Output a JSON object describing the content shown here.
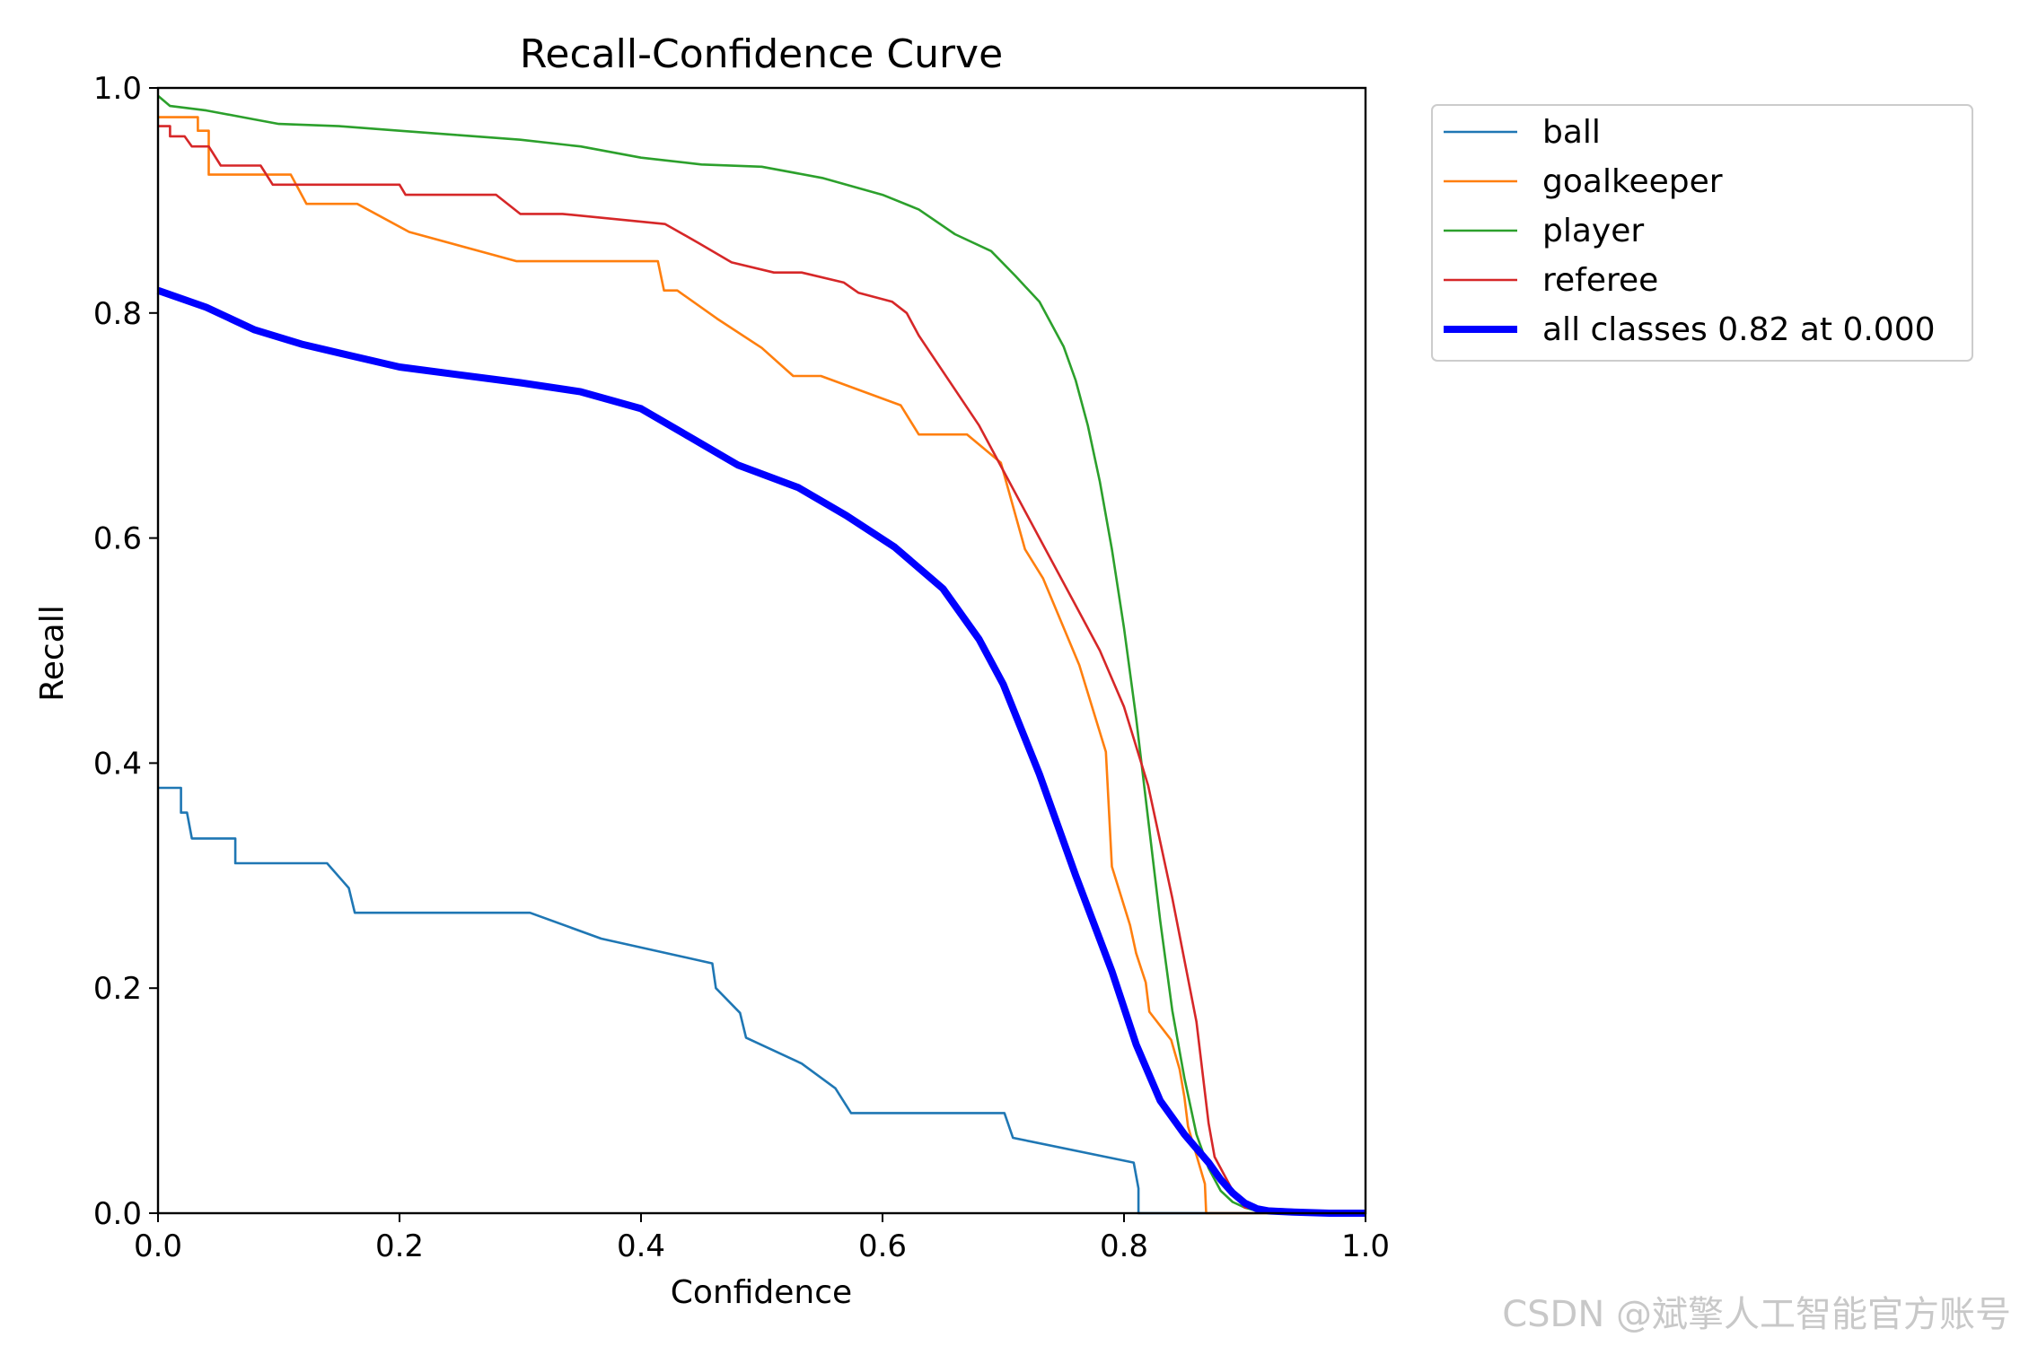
{
  "chart_data": {
    "type": "line",
    "title": "Recall-Confidence Curve",
    "xlabel": "Confidence",
    "ylabel": "Recall",
    "xlim": [
      0,
      1
    ],
    "ylim": [
      0,
      1
    ],
    "xticks": [
      "0.0",
      "0.2",
      "0.4",
      "0.6",
      "0.8",
      "1.0"
    ],
    "yticks": [
      "0.0",
      "0.2",
      "0.4",
      "0.6",
      "0.8",
      "1.0"
    ],
    "grid": false,
    "legend_position": "outside-top-right",
    "series": [
      {
        "name": "ball",
        "color": "#1f77b4",
        "width": "thin",
        "x": [
          0.0,
          0.019,
          0.019,
          0.024,
          0.028,
          0.033,
          0.064,
          0.064,
          0.14,
          0.158,
          0.163,
          0.308,
          0.367,
          0.459,
          0.462,
          0.482,
          0.487,
          0.533,
          0.561,
          0.574,
          0.701,
          0.708,
          0.808,
          0.812,
          0.812,
          1.0
        ],
        "y": [
          0.378,
          0.378,
          0.356,
          0.356,
          0.333,
          0.333,
          0.333,
          0.311,
          0.311,
          0.289,
          0.267,
          0.267,
          0.244,
          0.222,
          0.2,
          0.178,
          0.156,
          0.133,
          0.111,
          0.089,
          0.089,
          0.067,
          0.045,
          0.022,
          0.0,
          0.0
        ]
      },
      {
        "name": "goalkeeper",
        "color": "#ff7f0e",
        "width": "thin",
        "x": [
          0.0,
          0.033,
          0.033,
          0.042,
          0.042,
          0.11,
          0.123,
          0.165,
          0.208,
          0.297,
          0.414,
          0.419,
          0.43,
          0.463,
          0.5,
          0.526,
          0.549,
          0.615,
          0.63,
          0.67,
          0.698,
          0.718,
          0.733,
          0.763,
          0.785,
          0.79,
          0.805,
          0.81,
          0.818,
          0.821,
          0.839,
          0.846,
          0.85,
          0.853,
          0.867,
          0.868,
          1.0
        ],
        "y": [
          0.974,
          0.974,
          0.962,
          0.962,
          0.923,
          0.923,
          0.897,
          0.897,
          0.872,
          0.846,
          0.846,
          0.82,
          0.82,
          0.795,
          0.769,
          0.744,
          0.744,
          0.718,
          0.692,
          0.692,
          0.667,
          0.59,
          0.564,
          0.487,
          0.41,
          0.308,
          0.256,
          0.231,
          0.205,
          0.179,
          0.154,
          0.128,
          0.103,
          0.077,
          0.026,
          0.0,
          0.0
        ]
      },
      {
        "name": "player",
        "color": "#2ca02c",
        "width": "thin",
        "x": [
          0.0,
          0.01,
          0.04,
          0.08,
          0.1,
          0.15,
          0.2,
          0.25,
          0.3,
          0.35,
          0.4,
          0.45,
          0.5,
          0.55,
          0.6,
          0.63,
          0.66,
          0.69,
          0.71,
          0.73,
          0.75,
          0.76,
          0.77,
          0.78,
          0.79,
          0.8,
          0.81,
          0.82,
          0.83,
          0.84,
          0.85,
          0.86,
          0.87,
          0.88,
          0.89,
          0.9,
          0.91,
          0.92,
          0.95,
          1.0
        ],
        "y": [
          0.993,
          0.984,
          0.98,
          0.972,
          0.968,
          0.966,
          0.962,
          0.958,
          0.954,
          0.948,
          0.938,
          0.932,
          0.93,
          0.92,
          0.905,
          0.892,
          0.87,
          0.855,
          0.833,
          0.81,
          0.77,
          0.74,
          0.7,
          0.65,
          0.59,
          0.52,
          0.44,
          0.35,
          0.26,
          0.18,
          0.12,
          0.07,
          0.04,
          0.02,
          0.01,
          0.005,
          0.002,
          0.001,
          0.0,
          0.0
        ]
      },
      {
        "name": "referee",
        "color": "#d62728",
        "width": "thin",
        "x": [
          0.0,
          0.01,
          0.01,
          0.022,
          0.028,
          0.042,
          0.052,
          0.052,
          0.085,
          0.095,
          0.2,
          0.205,
          0.28,
          0.3,
          0.335,
          0.42,
          0.448,
          0.475,
          0.51,
          0.533,
          0.568,
          0.58,
          0.608,
          0.62,
          0.63,
          0.68,
          0.7,
          0.73,
          0.76,
          0.78,
          0.8,
          0.82,
          0.84,
          0.86,
          0.87,
          0.875,
          0.89,
          0.9,
          1.0
        ],
        "y": [
          0.966,
          0.966,
          0.957,
          0.957,
          0.948,
          0.948,
          0.931,
          0.931,
          0.931,
          0.914,
          0.914,
          0.905,
          0.905,
          0.888,
          0.888,
          0.879,
          0.862,
          0.845,
          0.836,
          0.836,
          0.827,
          0.818,
          0.81,
          0.8,
          0.78,
          0.7,
          0.66,
          0.6,
          0.54,
          0.5,
          0.45,
          0.38,
          0.28,
          0.17,
          0.08,
          0.05,
          0.02,
          0.005,
          0.0
        ]
      },
      {
        "name": "all classes 0.82 at 0.000",
        "color": "#0000ff",
        "width": "thick",
        "x": [
          0.0,
          0.04,
          0.08,
          0.12,
          0.16,
          0.2,
          0.25,
          0.3,
          0.35,
          0.4,
          0.44,
          0.48,
          0.53,
          0.57,
          0.61,
          0.65,
          0.68,
          0.7,
          0.73,
          0.76,
          0.79,
          0.81,
          0.83,
          0.85,
          0.87,
          0.88,
          0.89,
          0.9,
          0.91,
          0.92,
          0.94,
          0.97,
          1.0
        ],
        "y": [
          0.82,
          0.805,
          0.785,
          0.772,
          0.762,
          0.752,
          0.745,
          0.738,
          0.73,
          0.715,
          0.69,
          0.665,
          0.645,
          0.62,
          0.592,
          0.555,
          0.51,
          0.47,
          0.39,
          0.3,
          0.215,
          0.15,
          0.1,
          0.07,
          0.045,
          0.03,
          0.018,
          0.009,
          0.004,
          0.002,
          0.001,
          0.0,
          0.0
        ]
      }
    ]
  },
  "watermark": "CSDN @斌擎人工智能官方账号"
}
